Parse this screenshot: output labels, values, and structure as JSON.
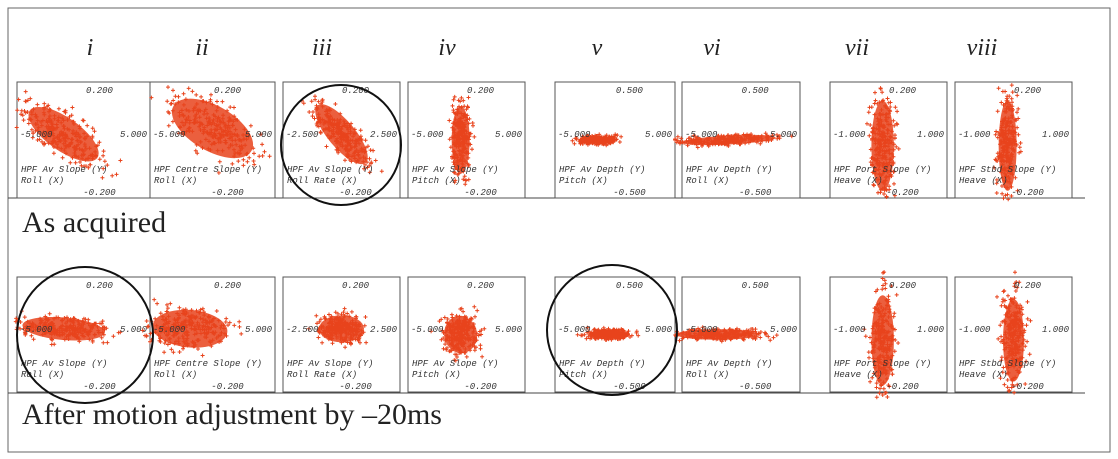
{
  "columns": [
    "i",
    "ii",
    "iii",
    "iv",
    "v",
    "vi",
    "vii",
    "viii"
  ],
  "rows": [
    {
      "caption": "As acquired",
      "panels": [
        {
          "top": "0.200",
          "left": "-5.000",
          "right": "5.000",
          "bottom": "-0.200",
          "y_label": "HPF Av Slope (Y)",
          "x_label": "Roll (X)"
        },
        {
          "top": "0.200",
          "left": "-5.000",
          "right": "5.000",
          "bottom": "-0.200",
          "y_label": "HPF Centre Slope (Y)",
          "x_label": "Roll (X)"
        },
        {
          "top": "0.200",
          "left": "-2.500",
          "right": "2.500",
          "bottom": "-0.200",
          "y_label": "HPF Av Slope (Y)",
          "x_label": "Roll Rate (X)"
        },
        {
          "top": "0.200",
          "left": "-5.000",
          "right": "5.000",
          "bottom": "-0.200",
          "y_label": "HPF Av Slope (Y)",
          "x_label": "Pitch (X)"
        },
        {
          "top": "0.500",
          "left": "-5.000",
          "right": "5.000",
          "bottom": "-0.500",
          "y_label": "HPF Av Depth (Y)",
          "x_label": "Pitch (X)"
        },
        {
          "top": "0.500",
          "left": "-5.000",
          "right": "5.000",
          "bottom": "-0.500",
          "y_label": "HPF Av Depth (Y)",
          "x_label": "Roll (X)"
        },
        {
          "top": "0.200",
          "left": "-1.000",
          "right": "1.000",
          "bottom": "-0.200",
          "y_label": "HPF Port Slope (Y)",
          "x_label": "Heave (X)"
        },
        {
          "top": "0.200",
          "left": "-1.000",
          "right": "1.000",
          "bottom": "-0.200",
          "y_label": "HPF Stbd Slope (Y)",
          "x_label": "Heave (X)"
        }
      ]
    },
    {
      "caption": "After motion adjustment by –20ms",
      "panels": [
        {
          "top": "0.200",
          "left": "-5.000",
          "right": "5.000",
          "bottom": "-0.200",
          "y_label": "HPF Av Slope (Y)",
          "x_label": "Roll (X)"
        },
        {
          "top": "0.200",
          "left": "-5.000",
          "right": "5.000",
          "bottom": "-0.200",
          "y_label": "HPF Centre Slope (Y)",
          "x_label": "Roll (X)"
        },
        {
          "top": "0.200",
          "left": "-2.500",
          "right": "2.500",
          "bottom": "-0.200",
          "y_label": "HPF Av Slope (Y)",
          "x_label": "Roll Rate (X)"
        },
        {
          "top": "0.200",
          "left": "-5.000",
          "right": "5.000",
          "bottom": "-0.200",
          "y_label": "HPF Av Slope (Y)",
          "x_label": "Pitch (X)"
        },
        {
          "top": "0.500",
          "left": "-5.000",
          "right": "5.000",
          "bottom": "-0.500",
          "y_label": "HPF Av Depth (Y)",
          "x_label": "Pitch (X)"
        },
        {
          "top": "0.500",
          "left": "-5.000",
          "right": "5.000",
          "bottom": "-0.500",
          "y_label": "HPF Av Depth (Y)",
          "x_label": "Roll (X)"
        },
        {
          "top": "0.200",
          "left": "-1.000",
          "right": "1.000",
          "bottom": "-0.200",
          "y_label": "HPF Port Slope (Y)",
          "x_label": "Heave (X)"
        },
        {
          "top": "0.200",
          "left": "-1.000",
          "right": "1.000",
          "bottom": "-0.200",
          "y_label": "HPF Stbd Slope (Y)",
          "x_label": "Heave (X)"
        }
      ]
    }
  ]
}
